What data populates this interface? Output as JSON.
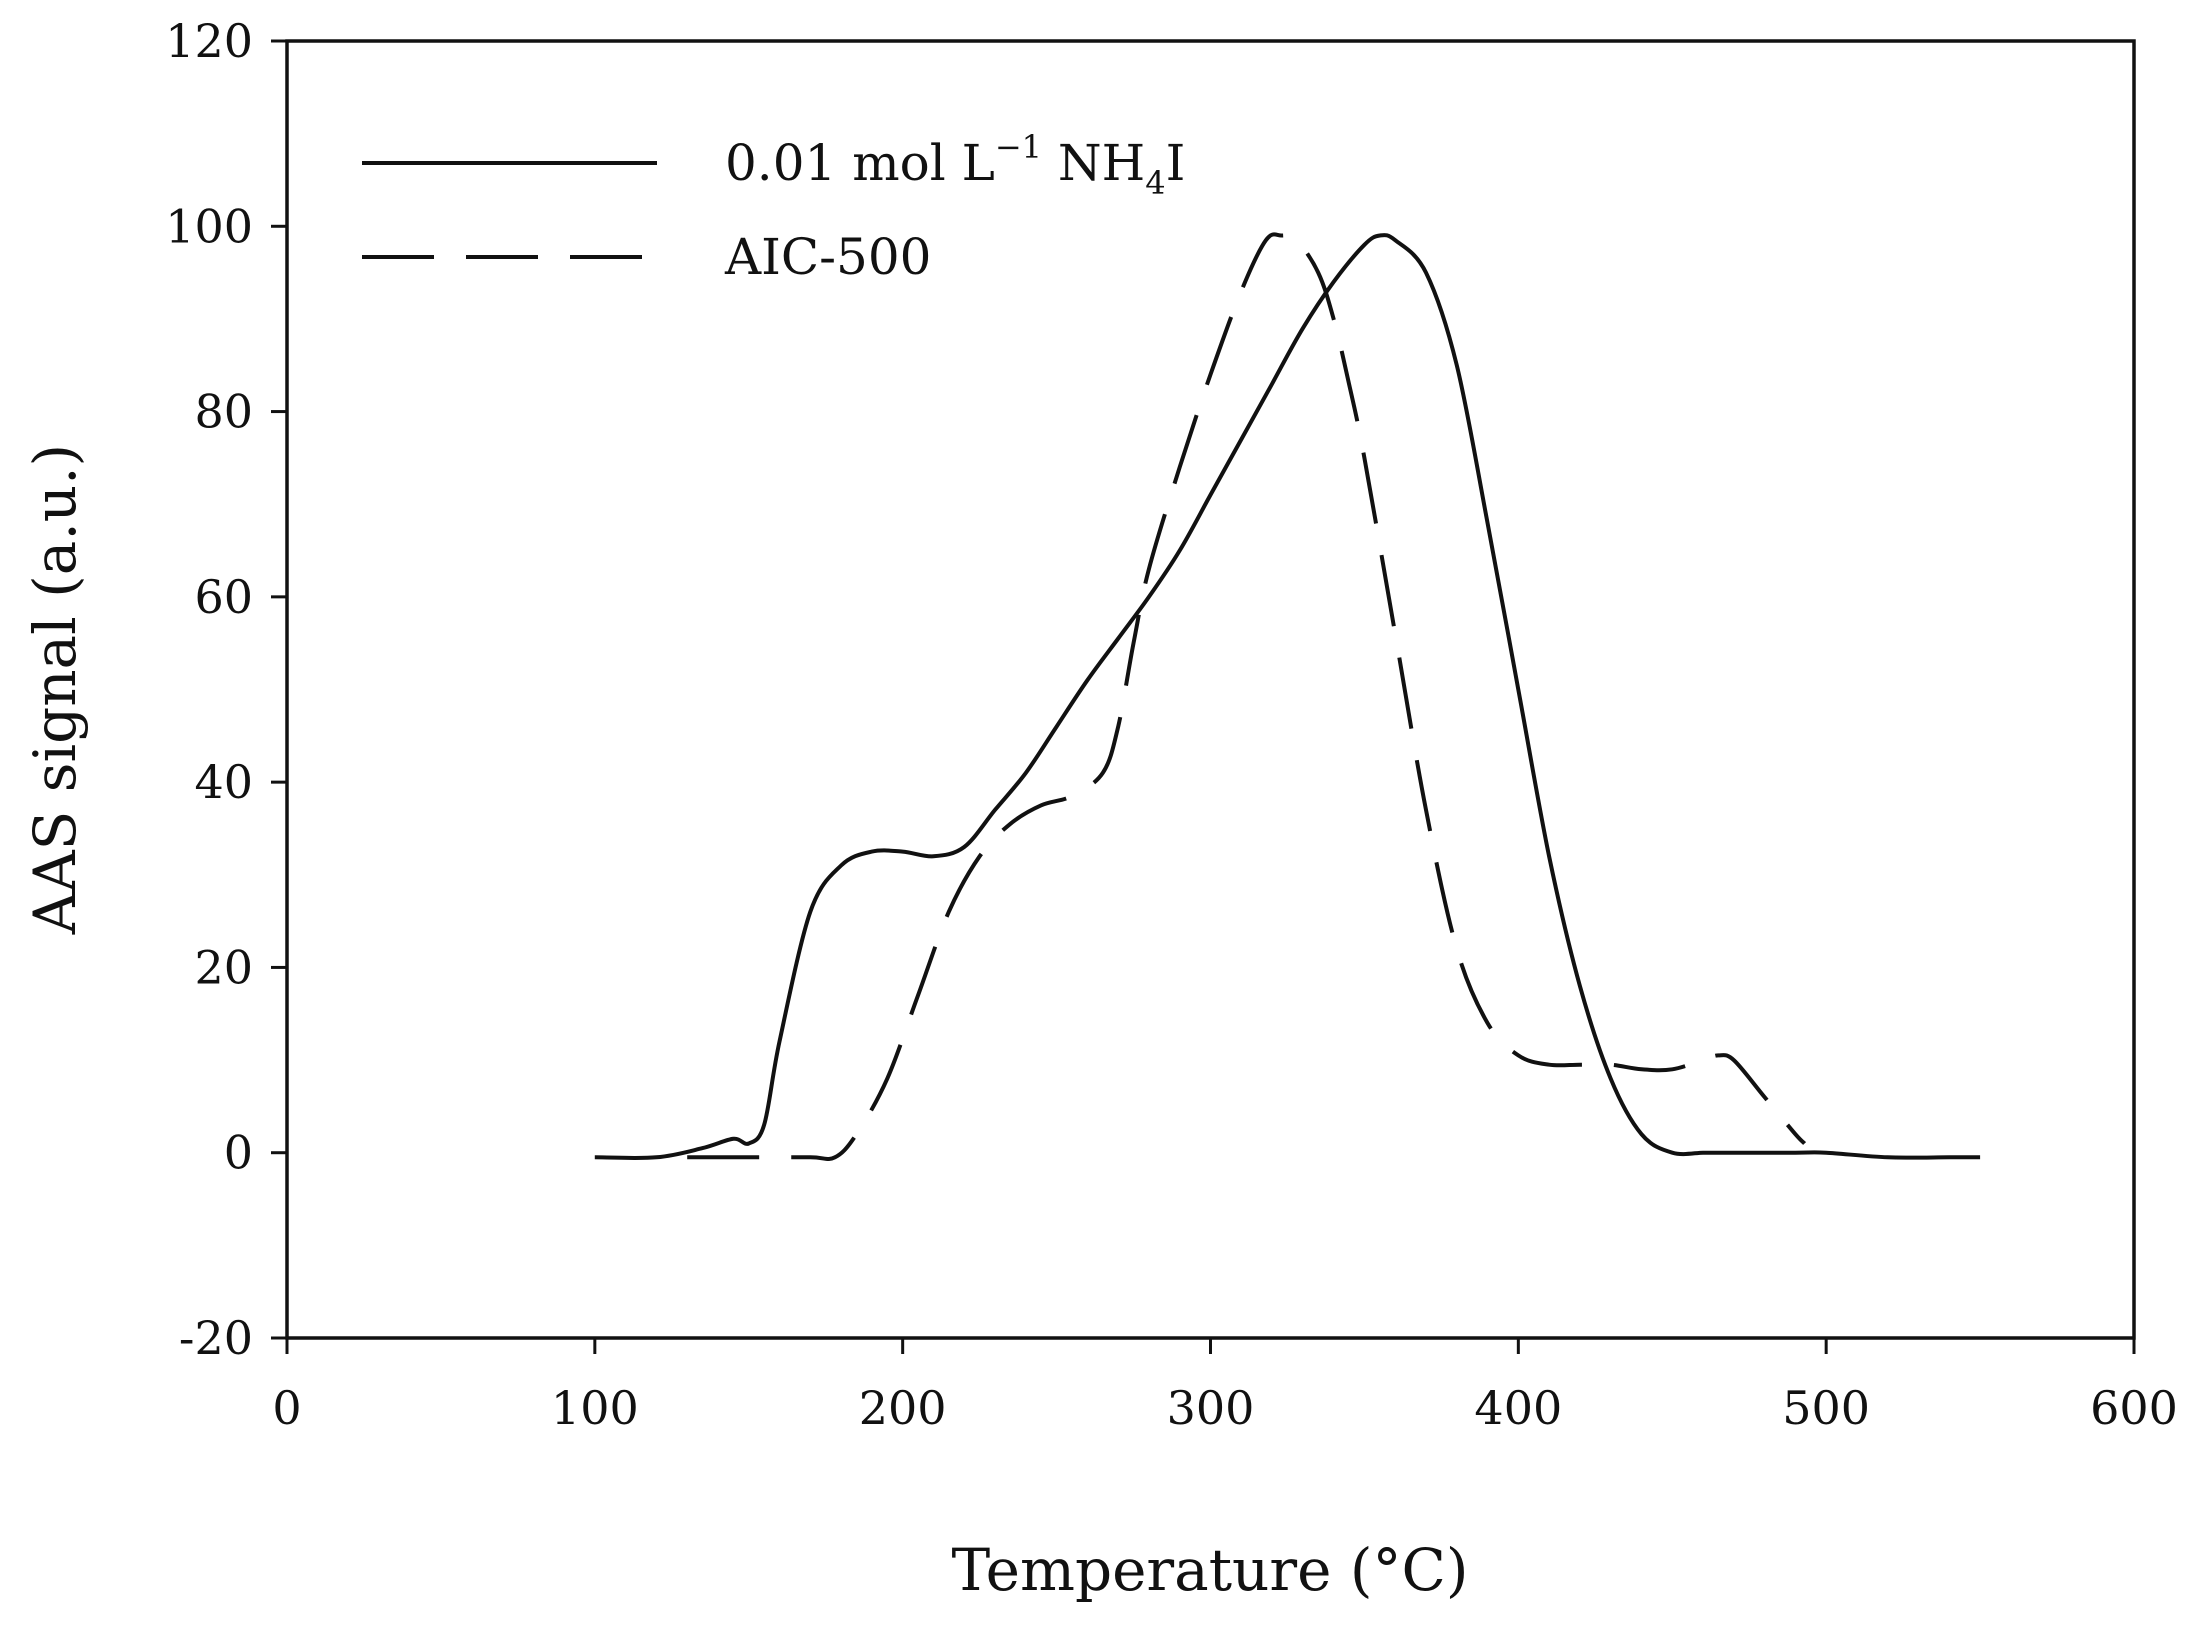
{
  "chart_data": {
    "type": "line",
    "title": "",
    "xlabel": "Temperature (°C)",
    "ylabel": "AAS signal (a.u.)",
    "xlim": [
      0,
      600
    ],
    "ylim": [
      -20,
      120
    ],
    "xticks": [
      0,
      100,
      200,
      300,
      400,
      500,
      600
    ],
    "yticks": [
      -20,
      0,
      20,
      40,
      60,
      80,
      100,
      120
    ],
    "grid": false,
    "legend_position": "top-left",
    "legend": {
      "solid": {
        "main": "0.01 mol L",
        "sup": "−1",
        "mid": " NH",
        "sub": "4",
        "tail": "I"
      },
      "dashed": {
        "label": "AIC-500"
      }
    },
    "series": [
      {
        "name": "0.01 mol L−1 NH4I",
        "style": "solid",
        "x": [
          100,
          120,
          135,
          145,
          150,
          155,
          160,
          170,
          180,
          190,
          200,
          210,
          220,
          230,
          240,
          250,
          260,
          270,
          280,
          290,
          300,
          310,
          320,
          330,
          340,
          350,
          355,
          360,
          370,
          380,
          390,
          400,
          410,
          420,
          430,
          440,
          450,
          460,
          465,
          470,
          490,
          500,
          520,
          540,
          550
        ],
        "y": [
          -0.5,
          -0.5,
          0.5,
          1.5,
          1,
          3,
          12,
          26,
          31,
          32.5,
          32.5,
          32,
          33,
          37,
          41,
          46,
          51,
          55.5,
          60,
          65,
          71,
          77,
          83,
          89,
          94,
          98,
          99,
          98.5,
          95,
          85,
          68,
          50,
          32,
          18,
          8,
          2,
          0,
          0,
          0,
          0,
          0,
          0,
          -0.5,
          -0.5,
          -0.5
        ]
      },
      {
        "name": "AIC-500",
        "style": "dashed",
        "x": [
          130,
          150,
          170,
          178,
          185,
          195,
          205,
          215,
          225,
          235,
          245,
          255,
          265,
          270,
          275,
          280,
          290,
          300,
          310,
          318,
          323,
          328,
          335,
          340,
          345,
          350,
          360,
          370,
          380,
          390,
          400,
          410,
          420,
          430,
          440,
          450,
          460,
          465,
          470,
          480,
          490,
          493
        ],
        "y": [
          -0.5,
          -0.5,
          -0.5,
          -0.5,
          2,
          8,
          17,
          26,
          32,
          35.5,
          37.5,
          38.5,
          41,
          46,
          55,
          63,
          74,
          84,
          93,
          98.5,
          99,
          98.5,
          95,
          90,
          83,
          75,
          56,
          37,
          22,
          14,
          10.5,
          9.5,
          9.5,
          9.5,
          9,
          9,
          10,
          10.5,
          10,
          6,
          2,
          1
        ]
      }
    ]
  }
}
